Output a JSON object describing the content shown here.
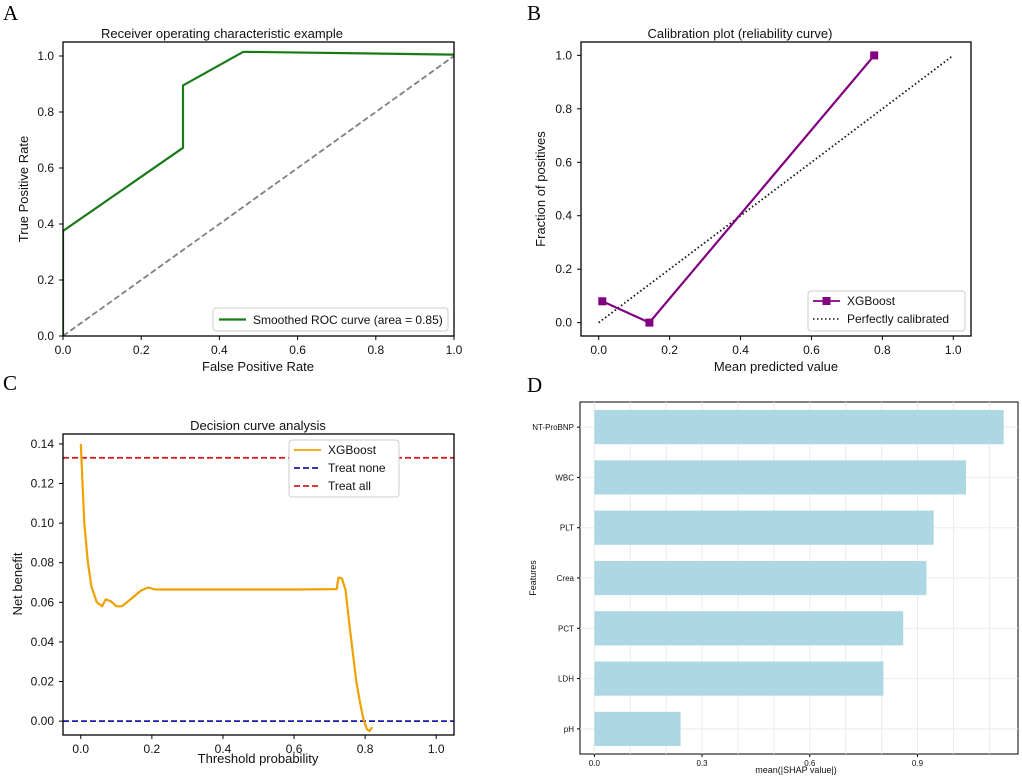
{
  "chart_data": [
    {
      "id": "A",
      "panel_label": "A",
      "type": "line",
      "title": "Receiver operating characteristic example",
      "xlabel": "False Positive Rate",
      "ylabel": "True Positive Rate",
      "xlim": [
        0,
        1
      ],
      "ylim": [
        0,
        1.05
      ],
      "xticks": [
        "0.0",
        "0.2",
        "0.4",
        "0.6",
        "0.8",
        "1.0"
      ],
      "yticks": [
        "0.0",
        "0.2",
        "0.4",
        "0.6",
        "0.8",
        "1.0"
      ],
      "series": [
        {
          "name": "Smoothed ROC curve (area = 0.85)",
          "color": "#1a7a1a",
          "style": "solid",
          "x": [
            0,
            0,
            0.307,
            0.307,
            0.461,
            1.0
          ],
          "y": [
            0,
            0.375,
            0.672,
            0.895,
            1.015,
            1.005
          ]
        },
        {
          "name": "chance",
          "color": "#808080",
          "style": "dashed",
          "x": [
            0,
            1
          ],
          "y": [
            0,
            1
          ]
        }
      ],
      "legend": {
        "position": "lower-right",
        "entries": [
          "Smoothed ROC curve (area = 0.85)"
        ]
      }
    },
    {
      "id": "B",
      "panel_label": "B",
      "type": "line",
      "title": "Calibration plot (reliability curve)",
      "xlabel": "Mean predicted value",
      "ylabel": "Fraction of positives",
      "xlim": [
        -0.05,
        1.05
      ],
      "ylim": [
        -0.05,
        1.05
      ],
      "xticks": [
        "0.0",
        "0.2",
        "0.4",
        "0.6",
        "0.8",
        "1.0"
      ],
      "yticks": [
        "0.0",
        "0.2",
        "0.4",
        "0.6",
        "0.8",
        "1.0"
      ],
      "series": [
        {
          "name": "XGBoost",
          "color": "#800080",
          "style": "solid",
          "marker": "square",
          "x": [
            0.01,
            0.143,
            0.777
          ],
          "y": [
            0.08,
            0.0,
            1.0
          ]
        },
        {
          "name": "Perfectly calibrated",
          "color": "#111111",
          "style": "dotted",
          "x": [
            0,
            1
          ],
          "y": [
            0,
            1
          ]
        }
      ],
      "legend": {
        "position": "lower-right",
        "entries": [
          "XGBoost",
          "Perfectly calibrated"
        ]
      }
    },
    {
      "id": "C",
      "panel_label": "C",
      "type": "line",
      "title": "Decision curve analysis",
      "xlabel": "Threshold probability",
      "ylabel": "Net benefit",
      "xlim": [
        -0.05,
        1.05
      ],
      "ylim": [
        -0.007,
        0.145
      ],
      "xticks": [
        "0.0",
        "0.2",
        "0.4",
        "0.6",
        "0.8",
        "1.0"
      ],
      "yticks": [
        "0.00",
        "0.02",
        "0.04",
        "0.06",
        "0.08",
        "0.10",
        "0.12",
        "0.14"
      ],
      "series": [
        {
          "name": "XGBoost",
          "color": "#f0a000",
          "style": "solid",
          "x": [
            0.0,
            0.01,
            0.02,
            0.03,
            0.045,
            0.06,
            0.07,
            0.085,
            0.1,
            0.115,
            0.13,
            0.15,
            0.17,
            0.19,
            0.21,
            0.25,
            0.4,
            0.6,
            0.72,
            0.725,
            0.735,
            0.745,
            0.755,
            0.765,
            0.775,
            0.785,
            0.795,
            0.805,
            0.812,
            0.82
          ],
          "y": [
            0.14,
            0.1,
            0.08,
            0.068,
            0.06,
            0.058,
            0.0615,
            0.0605,
            0.058,
            0.058,
            0.06,
            0.063,
            0.066,
            0.0675,
            0.0665,
            0.0665,
            0.0665,
            0.0665,
            0.0667,
            0.0725,
            0.072,
            0.066,
            0.05,
            0.035,
            0.02,
            0.01,
            0.001,
            -0.004,
            -0.005,
            -0.003
          ]
        },
        {
          "name": "Treat none",
          "color": "#1a1aaa",
          "style": "dashed",
          "x": [
            -0.05,
            1.05
          ],
          "y": [
            0,
            0
          ]
        },
        {
          "name": "Treat all",
          "color": "#d42020",
          "style": "dashed",
          "x": [
            -0.05,
            1.05
          ],
          "y": [
            0.133,
            0.133
          ]
        }
      ],
      "legend": {
        "position": "top-center",
        "entries": [
          "XGBoost",
          "Treat none",
          "Treat all"
        ]
      }
    },
    {
      "id": "D",
      "panel_label": "D",
      "type": "bar",
      "orientation": "horizontal",
      "title": "",
      "xlabel": "mean(|SHAP value|)",
      "ylabel": "Features",
      "xlim": [
        -0.04,
        1.18
      ],
      "xticks": [
        "0.0",
        "0.3",
        "0.6",
        "0.9"
      ],
      "xtick_values": [
        0.0,
        0.3,
        0.6,
        0.9
      ],
      "categories": [
        "NT-ProBNP",
        "WBC",
        "PLT",
        "Crea",
        "PCT",
        "LDH",
        "pH"
      ],
      "values": [
        1.14,
        1.035,
        0.945,
        0.925,
        0.86,
        0.805,
        0.24
      ],
      "color": "#add8e3",
      "grid": true
    }
  ]
}
